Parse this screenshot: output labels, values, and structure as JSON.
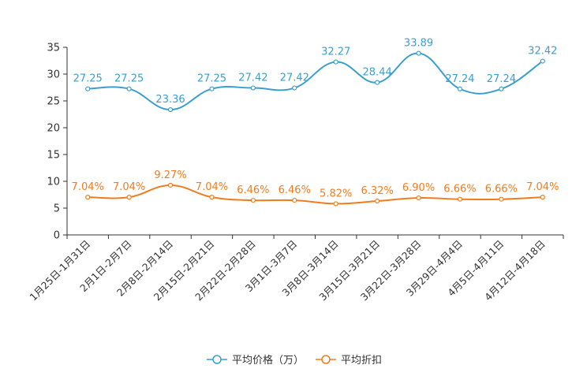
{
  "chart_data": {
    "type": "line",
    "title": "",
    "xlabel": "",
    "ylabel": "",
    "ylim": [
      0,
      35
    ],
    "yticks": [
      "0",
      "5",
      "10",
      "15",
      "20",
      "25",
      "30",
      "35"
    ],
    "categories": [
      "1月25日-1月31日",
      "2月1日-2月7日",
      "2月8日-2月14日",
      "2月15日-2月21日",
      "2月22日-2月28日",
      "3月1日-3月7日",
      "3月8日-3月14日",
      "3月15日-3月21日",
      "3月22日-3月28日",
      "3月29日-4月4日",
      "4月5日-4月11日",
      "4月12日-4月18日"
    ],
    "series": [
      {
        "name": "平均价格（万）",
        "color": "#3a9fcf",
        "values": [
          27.25,
          27.25,
          23.36,
          27.25,
          27.42,
          27.42,
          32.27,
          28.44,
          33.89,
          27.24,
          27.24,
          32.42
        ],
        "labels": [
          "27.25",
          "27.25",
          "23.36",
          "27.25",
          "27.42",
          "27.42",
          "32.27",
          "28.44",
          "33.89",
          "27.24",
          "27.24",
          "32.42"
        ]
      },
      {
        "name": "平均折扣",
        "color": "#f07c1d",
        "values": [
          7.04,
          7.04,
          9.27,
          7.04,
          6.46,
          6.46,
          5.82,
          6.32,
          6.9,
          6.66,
          6.66,
          7.04
        ],
        "labels": [
          "7.04%",
          "7.04%",
          "9.27%",
          "7.04%",
          "6.46%",
          "6.46%",
          "5.82%",
          "6.32%",
          "6.90%",
          "6.66%",
          "6.66%",
          "7.04%"
        ]
      }
    ],
    "legend": "bottom-center",
    "grid": false
  }
}
